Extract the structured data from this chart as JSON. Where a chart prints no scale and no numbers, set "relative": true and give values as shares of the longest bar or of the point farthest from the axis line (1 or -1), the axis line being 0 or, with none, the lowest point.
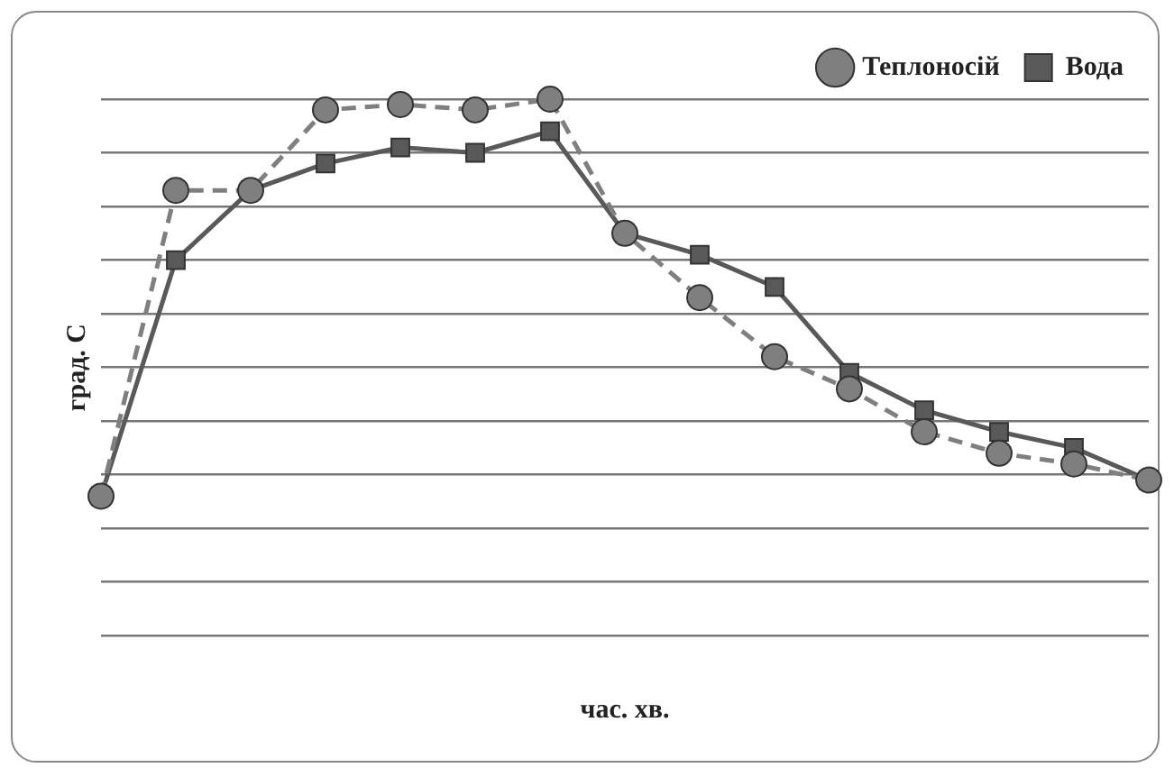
{
  "chart_data": {
    "type": "line",
    "relative": true,
    "xlabel": "час. хв.",
    "ylabel": "град. С",
    "categories": [
      null,
      null,
      null,
      null,
      null,
      null,
      null,
      null,
      null,
      null,
      null,
      null,
      null,
      null,
      null
    ],
    "series": [
      {
        "name": "Теплоносій",
        "color": "#7f7f7f",
        "marker": "circle",
        "line_style": "dashed",
        "values": [
          0.26,
          0.83,
          0.83,
          0.98,
          0.99,
          0.98,
          1,
          0.75,
          0.63,
          0.52,
          0.46,
          0.38,
          0.34,
          0.32,
          0.29
        ]
      },
      {
        "name": "Вода",
        "color": "#595959",
        "marker": "square",
        "line_style": "solid",
        "values": [
          0.26,
          0.7,
          0.83,
          0.88,
          0.91,
          0.9,
          0.94,
          0.75,
          0.71,
          0.65,
          0.49,
          0.42,
          0.38,
          0.35,
          0.29
        ]
      }
    ],
    "grid": "y",
    "legend": "top right"
  }
}
